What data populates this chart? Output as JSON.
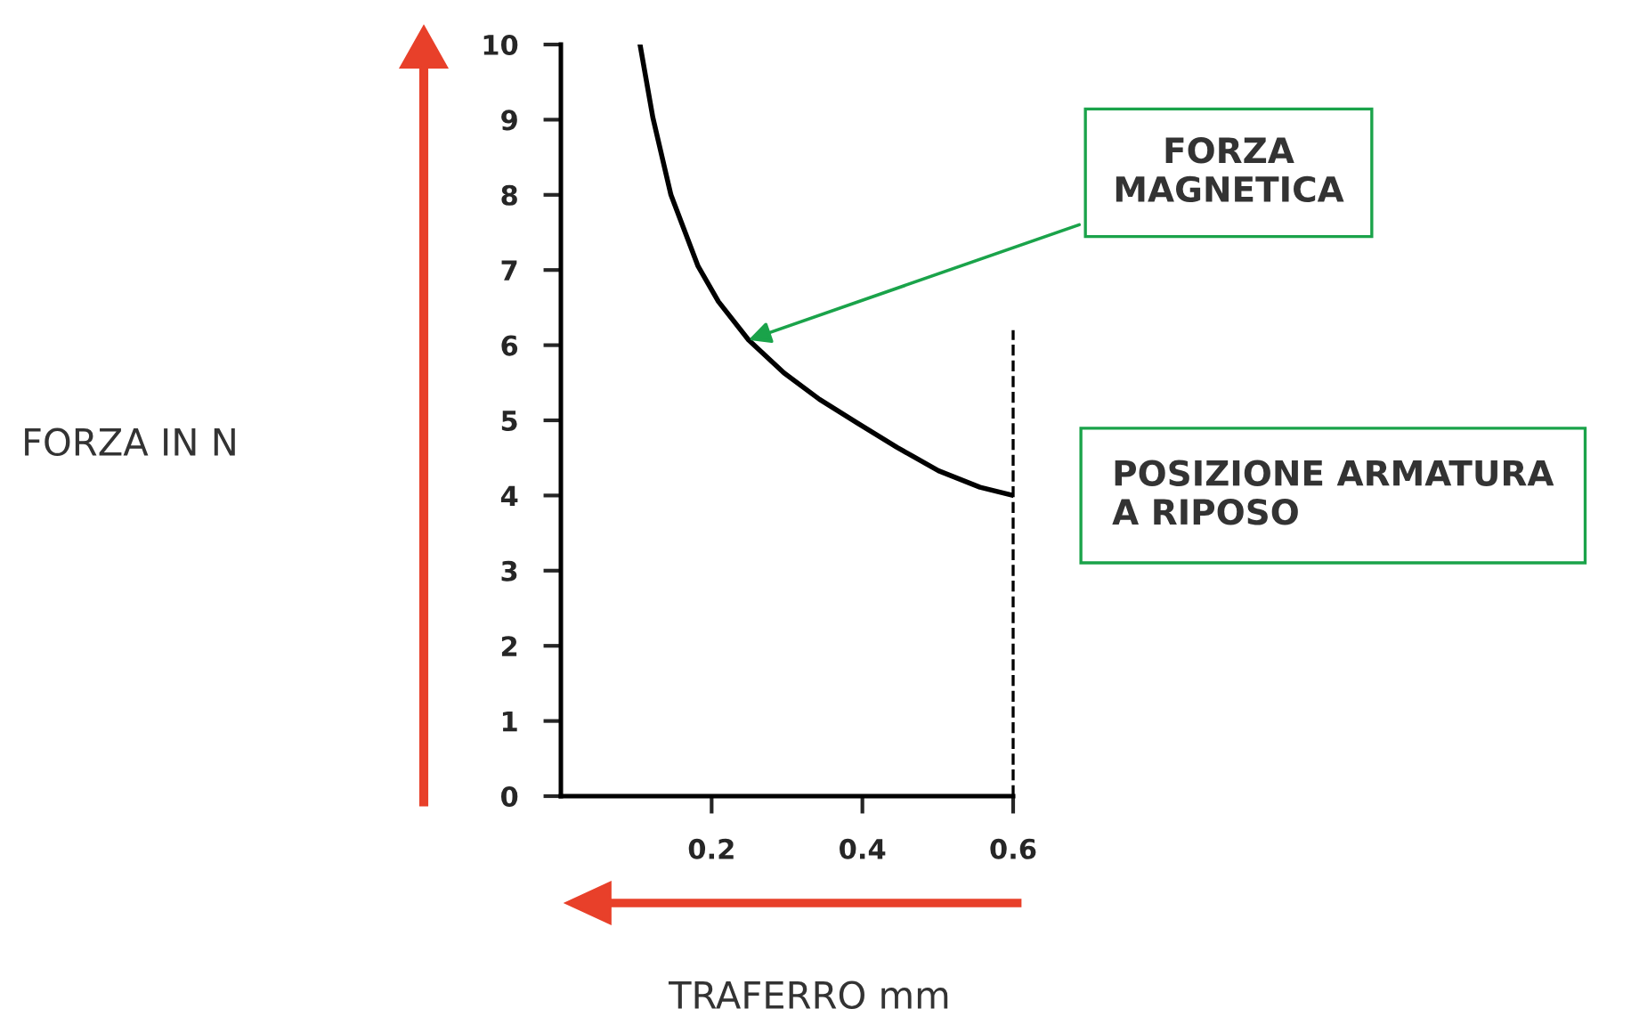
{
  "chart_data": {
    "type": "line",
    "xlabel": "TRAFERRO mm",
    "series": [
      {
        "color": "#000000",
        "x": [
          0.105,
          0.122,
          0.146,
          0.182,
          0.209,
          0.249,
          0.296,
          0.343,
          0.394,
          0.446,
          0.501,
          0.556,
          0.6
        ],
        "values": [
          10,
          9.03,
          8.0,
          7.05,
          6.58,
          6.07,
          5.63,
          5.28,
          4.96,
          4.64,
          4.33,
          4.11,
          4.0
        ]
      }
    ],
    "xlim": [
      0,
      0.6
    ],
    "ylim": [
      0,
      10
    ],
    "xticks": [
      0.2,
      0.4,
      0.6
    ],
    "yticks": [
      0,
      1,
      2,
      3,
      4,
      5,
      6,
      7,
      8,
      9,
      10
    ],
    "annotations": [
      {
        "text": "FORZA\nMAGNETICA",
        "x": 0.249,
        "y": 6.07
      },
      "FORZA IN N"
    ],
    "ref_lines": [
      {
        "axis": "x",
        "value": 0.6,
        "label": "POSIZIONE ARMATURA\nA RIPOSO",
        "line_style": "dashed",
        "color": "#000000"
      }
    ],
    "grid": false,
    "legend": false,
    "marker": "none",
    "line_style": "solid"
  }
}
